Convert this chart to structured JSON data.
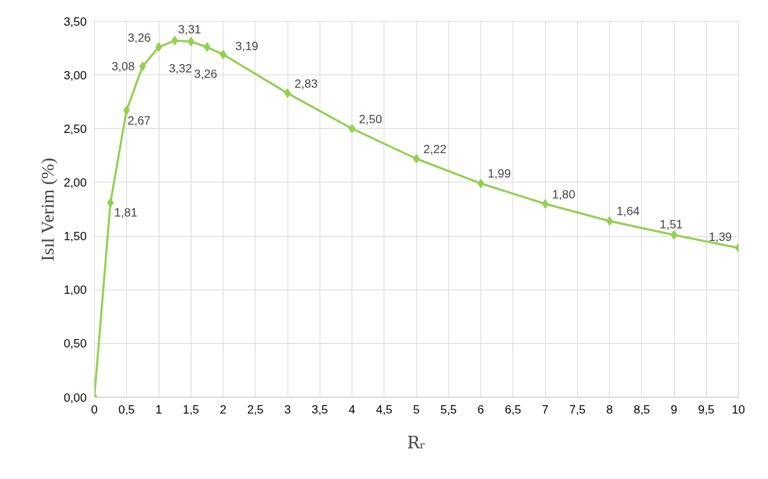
{
  "chart_data": {
    "type": "line",
    "xlabel": "Rᵣ",
    "ylabel": "Isıl Verim (%)",
    "x": [
      0,
      0.25,
      0.5,
      0.75,
      1,
      1.25,
      1.5,
      1.75,
      2,
      3,
      4,
      5,
      6,
      7,
      8,
      9,
      10
    ],
    "series": [
      {
        "color": "#92d050",
        "values": [
          0,
          1.81,
          2.67,
          3.08,
          3.26,
          3.32,
          3.31,
          3.26,
          3.19,
          2.83,
          2.5,
          2.22,
          1.99,
          1.8,
          1.64,
          1.51,
          1.39
        ],
        "value_labels": [
          null,
          "1,81",
          "2,67",
          "3,08",
          "3,26",
          "3,32",
          "3,31",
          "3,26",
          "3,19",
          "2,83",
          "2,50",
          "2,22",
          "1,99",
          "1,80",
          "1,64",
          "1,51",
          "1,39"
        ]
      }
    ],
    "xlim": [
      0,
      10
    ],
    "ylim": [
      0,
      3.5
    ],
    "xticks": [
      {
        "value": 0,
        "label": "0"
      },
      {
        "value": 0.5,
        "label": "0,5"
      },
      {
        "value": 1,
        "label": "1"
      },
      {
        "value": 1.5,
        "label": "1,5"
      },
      {
        "value": 2,
        "label": "2"
      },
      {
        "value": 2.5,
        "label": "2,5"
      },
      {
        "value": 3,
        "label": "3"
      },
      {
        "value": 3.5,
        "label": "3,5"
      },
      {
        "value": 4,
        "label": "4"
      },
      {
        "value": 4.5,
        "label": "4,5"
      },
      {
        "value": 5,
        "label": "5"
      },
      {
        "value": 5.5,
        "label": "5,5"
      },
      {
        "value": 6,
        "label": "6"
      },
      {
        "value": 6.5,
        "label": "6,5"
      },
      {
        "value": 7,
        "label": "7"
      },
      {
        "value": 7.5,
        "label": "7,5"
      },
      {
        "value": 8,
        "label": "8"
      },
      {
        "value": 8.5,
        "label": "8,5"
      },
      {
        "value": 9,
        "label": "9"
      },
      {
        "value": 9.5,
        "label": "9,5"
      },
      {
        "value": 10,
        "label": "10"
      }
    ],
    "yticks": [
      {
        "value": 0,
        "label": "0,00"
      },
      {
        "value": 0.5,
        "label": "0,50"
      },
      {
        "value": 1,
        "label": "1,00"
      },
      {
        "value": 1.5,
        "label": "1,50"
      },
      {
        "value": 2,
        "label": "2,00"
      },
      {
        "value": 2.5,
        "label": "2,50"
      },
      {
        "value": 3,
        "label": "3,00"
      },
      {
        "value": 3.5,
        "label": "3,50"
      }
    ],
    "grid": true,
    "marker": "diamond",
    "line_style": "solid"
  }
}
